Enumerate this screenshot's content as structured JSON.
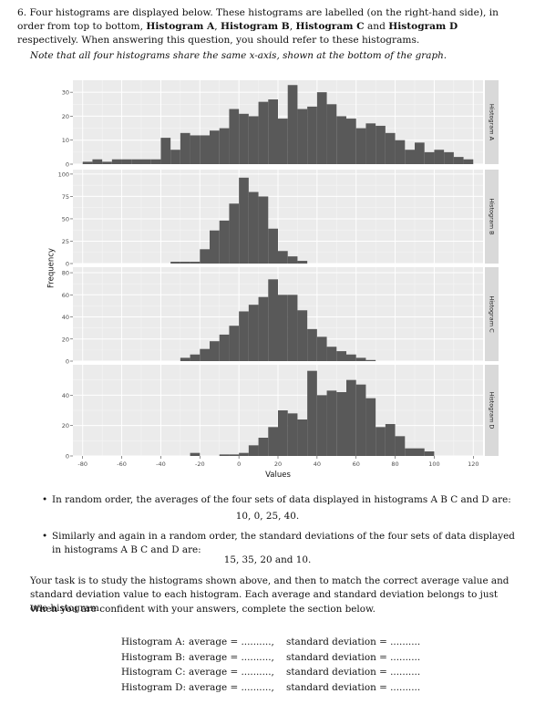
{
  "question": {
    "number": "6.",
    "intro_a": "Four histograms are displayed below. These histograms are labelled (on the right-hand side), in order from top to bottom, ",
    "hist_a": "Histogram A",
    "sep1": ", ",
    "hist_b": "Histogram B",
    "sep2": ", ",
    "hist_c": "Histogram C",
    "sep3": " and ",
    "hist_d": "Histogram D",
    "intro_b": " respectively. When answering this question, you should refer to these histograms.",
    "note": "Note that all four histograms share the same x-axis, shown at the bottom of the graph."
  },
  "chart_data": {
    "type": "bar",
    "xlabel": "Values",
    "ylabel": "Frequency",
    "x_ticks": [
      "-80",
      "-60",
      "-40",
      "-20",
      "0",
      "20",
      "40",
      "60",
      "80",
      "100",
      "120"
    ],
    "xlim": [
      -85,
      125
    ],
    "bin_width": 5,
    "panels": [
      {
        "name": "Histogram A",
        "ylim": [
          0,
          35
        ],
        "y_ticks": [
          "0",
          "10",
          "20",
          "30"
        ],
        "bins_start": -80,
        "values": [
          1,
          2,
          1,
          2,
          2,
          2,
          2,
          2,
          11,
          6,
          13,
          12,
          12,
          14,
          15,
          23,
          21,
          20,
          26,
          27,
          19,
          33,
          23,
          24,
          30,
          25,
          20,
          19,
          15,
          17,
          16,
          13,
          10,
          6,
          9,
          5,
          6,
          5,
          3,
          2
        ]
      },
      {
        "name": "Histogram B",
        "ylim": [
          0,
          105
        ],
        "y_ticks": [
          "0",
          "25",
          "50",
          "75",
          "100"
        ],
        "bins_start": -35,
        "values": [
          2,
          2,
          2,
          16,
          37,
          48,
          67,
          96,
          80,
          75,
          39,
          14,
          8,
          3
        ]
      },
      {
        "name": "Histogram C",
        "ylim": [
          0,
          85
        ],
        "y_ticks": [
          "0",
          "20",
          "40",
          "60",
          "80"
        ],
        "bins_start": -30,
        "values": [
          3,
          6,
          11,
          18,
          24,
          32,
          45,
          51,
          58,
          74,
          60,
          60,
          46,
          29,
          22,
          13,
          9,
          6,
          3,
          1
        ]
      },
      {
        "name": "Histogram D",
        "ylim": [
          0,
          60
        ],
        "y_ticks": [
          "0",
          "20",
          "40"
        ],
        "bins_start": -25,
        "values": [
          2,
          0,
          0,
          1,
          1,
          2,
          7,
          12,
          19,
          30,
          28,
          24,
          56,
          40,
          43,
          42,
          50,
          47,
          38,
          19,
          21,
          13,
          5,
          5,
          3
        ]
      }
    ]
  },
  "bullets": {
    "b1": "In random order, the averages of the four sets of data displayed in histograms A B C and D are:",
    "b1_values": "10, 0, 25, 40.",
    "b2": "Similarly and again in a random order, the standard deviations of the four sets of data displayed in histograms A B C and D are:",
    "b2_values": "15, 35, 20 and 10."
  },
  "task": {
    "p1": "Your task is to study the histograms shown above, and then to match the correct average value and standard deviation value to each histogram. Each average and standard deviation belongs to just one histogram.",
    "p2": "When you are confident with your answers, complete the section below."
  },
  "answers": [
    {
      "label": "Histogram A:",
      "avg": "average = ..........,",
      "sd": "standard deviation = .........."
    },
    {
      "label": "Histogram B:",
      "avg": "average = ..........,",
      "sd": "standard deviation = .........."
    },
    {
      "label": "Histogram C:",
      "avg": "average = ..........,",
      "sd": "standard deviation = .........."
    },
    {
      "label": "Histogram D:",
      "avg": "average = ..........,",
      "sd": "standard deviation = .........."
    }
  ]
}
